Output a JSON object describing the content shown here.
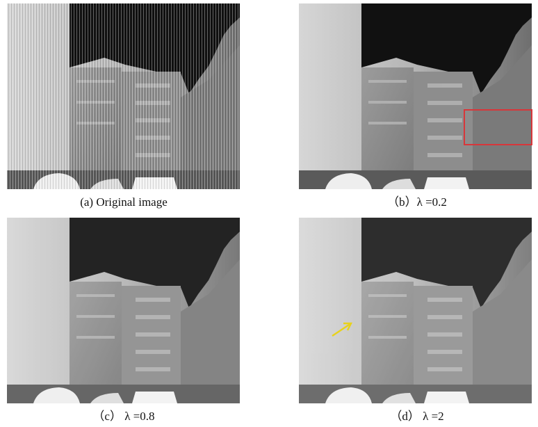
{
  "panels": [
    {
      "caption": "(a) Original image"
    },
    {
      "caption": "（b）λ =0.2"
    },
    {
      "caption": "（c） λ =0.8"
    },
    {
      "caption": "（d） λ =2"
    }
  ]
}
